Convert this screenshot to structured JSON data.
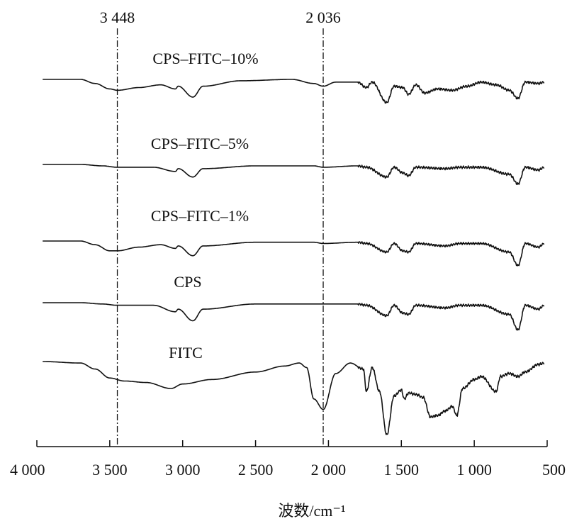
{
  "chart_data": {
    "type": "line",
    "title": "",
    "xlabel": "波数/cm⁻¹",
    "ylabel": "",
    "xlim": [
      4000,
      500
    ],
    "x_reversed": true,
    "xticks": [
      {
        "value": 4000,
        "label": "4 000"
      },
      {
        "value": 3500,
        "label": "3 500"
      },
      {
        "value": 3000,
        "label": "3 000"
      },
      {
        "value": 2500,
        "label": "2 500"
      },
      {
        "value": 2000,
        "label": "2 000"
      },
      {
        "value": 1500,
        "label": "1 500"
      },
      {
        "value": 1000,
        "label": "1 000"
      },
      {
        "value": 500,
        "label": "500"
      }
    ],
    "reference_lines": [
      {
        "value": 3448,
        "label": "3 448"
      },
      {
        "value": 2036,
        "label": "2 036"
      }
    ],
    "grid": false,
    "legend": "none",
    "series": [
      {
        "name": "CPS–FITC–10%",
        "baseline": 0.8,
        "points": [
          [
            3960,
            0
          ],
          [
            3700,
            0
          ],
          [
            3600,
            -0.03
          ],
          [
            3500,
            -0.07
          ],
          [
            3448,
            -0.08
          ],
          [
            3300,
            -0.06
          ],
          [
            3150,
            -0.04
          ],
          [
            3050,
            -0.07
          ],
          [
            3030,
            -0.05
          ],
          [
            2930,
            -0.13
          ],
          [
            2860,
            -0.05
          ],
          [
            2600,
            -0.01
          ],
          [
            2250,
            0.0
          ],
          [
            2100,
            -0.03
          ],
          [
            2036,
            -0.05
          ],
          [
            1950,
            -0.02
          ],
          [
            1800,
            -0.02
          ],
          [
            1740,
            -0.06
          ],
          [
            1700,
            -0.02
          ],
          [
            1600,
            -0.17
          ],
          [
            1550,
            -0.05
          ],
          [
            1490,
            -0.06
          ],
          [
            1450,
            -0.11
          ],
          [
            1400,
            -0.04
          ],
          [
            1340,
            -0.1
          ],
          [
            1250,
            -0.07
          ],
          [
            1150,
            -0.08
          ],
          [
            1050,
            -0.05
          ],
          [
            950,
            -0.02
          ],
          [
            850,
            -0.04
          ],
          [
            760,
            -0.08
          ],
          [
            700,
            -0.14
          ],
          [
            650,
            -0.02
          ],
          [
            560,
            -0.03
          ],
          [
            520,
            -0.02
          ]
        ]
      },
      {
        "name": "CPS–FITC–5%",
        "baseline": 0.82,
        "points": [
          [
            3960,
            0
          ],
          [
            3700,
            0
          ],
          [
            3550,
            -0.01
          ],
          [
            3448,
            -0.02
          ],
          [
            3200,
            -0.02
          ],
          [
            3050,
            -0.05
          ],
          [
            3030,
            -0.03
          ],
          [
            2930,
            -0.09
          ],
          [
            2860,
            -0.03
          ],
          [
            2500,
            -0.01
          ],
          [
            2100,
            -0.01
          ],
          [
            2036,
            -0.02
          ],
          [
            1800,
            -0.01
          ],
          [
            1740,
            -0.02
          ],
          [
            1600,
            -0.09
          ],
          [
            1550,
            -0.02
          ],
          [
            1490,
            -0.06
          ],
          [
            1450,
            -0.08
          ],
          [
            1400,
            -0.02
          ],
          [
            1200,
            -0.03
          ],
          [
            1100,
            -0.02
          ],
          [
            950,
            -0.02
          ],
          [
            760,
            -0.07
          ],
          [
            700,
            -0.14
          ],
          [
            650,
            -0.02
          ],
          [
            560,
            -0.04
          ],
          [
            520,
            -0.02
          ]
        ]
      },
      {
        "name": "CPS–FITC–1%",
        "baseline": 0.72,
        "points": [
          [
            3960,
            0
          ],
          [
            3700,
            0
          ],
          [
            3600,
            -0.03
          ],
          [
            3500,
            -0.08
          ],
          [
            3448,
            -0.08
          ],
          [
            3300,
            -0.05
          ],
          [
            3150,
            -0.03
          ],
          [
            3050,
            -0.06
          ],
          [
            3030,
            -0.04
          ],
          [
            2930,
            -0.12
          ],
          [
            2860,
            -0.04
          ],
          [
            2500,
            -0.01
          ],
          [
            2100,
            -0.01
          ],
          [
            2036,
            -0.02
          ],
          [
            1800,
            -0.01
          ],
          [
            1740,
            -0.02
          ],
          [
            1600,
            -0.09
          ],
          [
            1550,
            -0.02
          ],
          [
            1490,
            -0.08
          ],
          [
            1450,
            -0.09
          ],
          [
            1400,
            -0.02
          ],
          [
            1200,
            -0.04
          ],
          [
            1100,
            -0.02
          ],
          [
            950,
            -0.02
          ],
          [
            760,
            -0.09
          ],
          [
            700,
            -0.2
          ],
          [
            650,
            -0.02
          ],
          [
            560,
            -0.05
          ],
          [
            520,
            -0.02
          ]
        ]
      },
      {
        "name": "CPS",
        "baseline": 0.76,
        "points": [
          [
            3960,
            0
          ],
          [
            3700,
            0
          ],
          [
            3550,
            -0.01
          ],
          [
            3448,
            -0.02
          ],
          [
            3200,
            -0.02
          ],
          [
            3050,
            -0.07
          ],
          [
            3030,
            -0.05
          ],
          [
            2930,
            -0.14
          ],
          [
            2860,
            -0.05
          ],
          [
            2500,
            -0.01
          ],
          [
            2100,
            -0.01
          ],
          [
            2036,
            -0.01
          ],
          [
            1800,
            -0.01
          ],
          [
            1740,
            -0.02
          ],
          [
            1600,
            -0.1
          ],
          [
            1550,
            -0.02
          ],
          [
            1490,
            -0.08
          ],
          [
            1450,
            -0.09
          ],
          [
            1400,
            -0.02
          ],
          [
            1200,
            -0.04
          ],
          [
            1100,
            -0.02
          ],
          [
            950,
            -0.02
          ],
          [
            760,
            -0.09
          ],
          [
            700,
            -0.21
          ],
          [
            650,
            -0.02
          ],
          [
            560,
            -0.05
          ],
          [
            520,
            -0.02
          ]
        ]
      },
      {
        "name": "FITC",
        "baseline": 0.88,
        "points": [
          [
            3960,
            0
          ],
          [
            3700,
            -0.01
          ],
          [
            3600,
            -0.05
          ],
          [
            3500,
            -0.11
          ],
          [
            3400,
            -0.13
          ],
          [
            3250,
            -0.14
          ],
          [
            3080,
            -0.18
          ],
          [
            3000,
            -0.15
          ],
          [
            2800,
            -0.12
          ],
          [
            2500,
            -0.07
          ],
          [
            2300,
            -0.03
          ],
          [
            2200,
            -0.01
          ],
          [
            2150,
            -0.04
          ],
          [
            2100,
            -0.25
          ],
          [
            2036,
            -0.32
          ],
          [
            1950,
            -0.08
          ],
          [
            1850,
            -0.01
          ],
          [
            1760,
            -0.05
          ],
          [
            1740,
            -0.2
          ],
          [
            1700,
            -0.04
          ],
          [
            1650,
            -0.2
          ],
          [
            1600,
            -0.49
          ],
          [
            1550,
            -0.23
          ],
          [
            1500,
            -0.19
          ],
          [
            1480,
            -0.25
          ],
          [
            1450,
            -0.21
          ],
          [
            1400,
            -0.22
          ],
          [
            1350,
            -0.24
          ],
          [
            1300,
            -0.37
          ],
          [
            1250,
            -0.36
          ],
          [
            1200,
            -0.33
          ],
          [
            1150,
            -0.3
          ],
          [
            1120,
            -0.36
          ],
          [
            1080,
            -0.18
          ],
          [
            1000,
            -0.12
          ],
          [
            950,
            -0.1
          ],
          [
            850,
            -0.2
          ],
          [
            820,
            -0.1
          ],
          [
            760,
            -0.08
          ],
          [
            700,
            -0.1
          ],
          [
            650,
            -0.07
          ],
          [
            560,
            -0.02
          ],
          [
            520,
            -0.01
          ]
        ]
      }
    ]
  }
}
